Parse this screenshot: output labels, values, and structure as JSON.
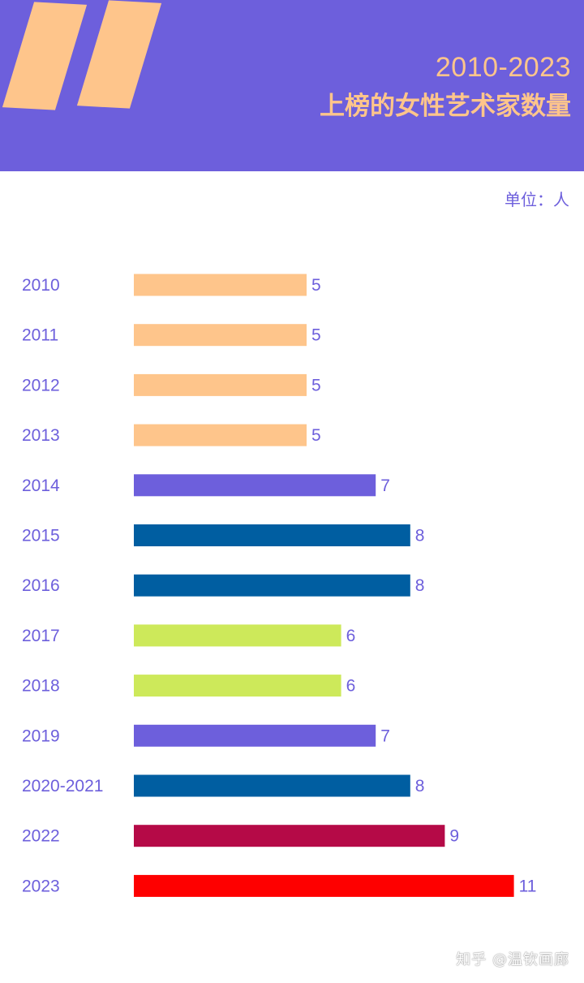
{
  "header": {
    "subtitle": "2010-2023",
    "title": "上榜的女性艺术家数量",
    "background_color": "#6d5fdc",
    "accent_color": "#fec58b"
  },
  "unit_label": "单位：人",
  "footer": {
    "watermark": "知乎 @温钦画廊"
  },
  "chart_data": {
    "type": "bar",
    "orientation": "horizontal",
    "title": "上榜的女性艺术家数量",
    "subtitle": "2010-2023",
    "unit": "单位：人",
    "categories": [
      "2010",
      "2011",
      "2012",
      "2013",
      "2014",
      "2015",
      "2016",
      "2017",
      "2018",
      "2019",
      "2020-2021",
      "2022",
      "2023"
    ],
    "values": [
      5,
      5,
      5,
      5,
      7,
      8,
      8,
      6,
      6,
      7,
      8,
      9,
      11
    ],
    "colors": [
      "#fec58b",
      "#fec58b",
      "#fec58b",
      "#fec58b",
      "#6d5fdc",
      "#005ea1",
      "#005ea1",
      "#cde95a",
      "#cde95a",
      "#6d5fdc",
      "#005ea1",
      "#b50a47",
      "#fe0000"
    ],
    "label_color": "#6d5fdc",
    "xlim": [
      0,
      11
    ],
    "grid": false,
    "data_labels": true
  }
}
